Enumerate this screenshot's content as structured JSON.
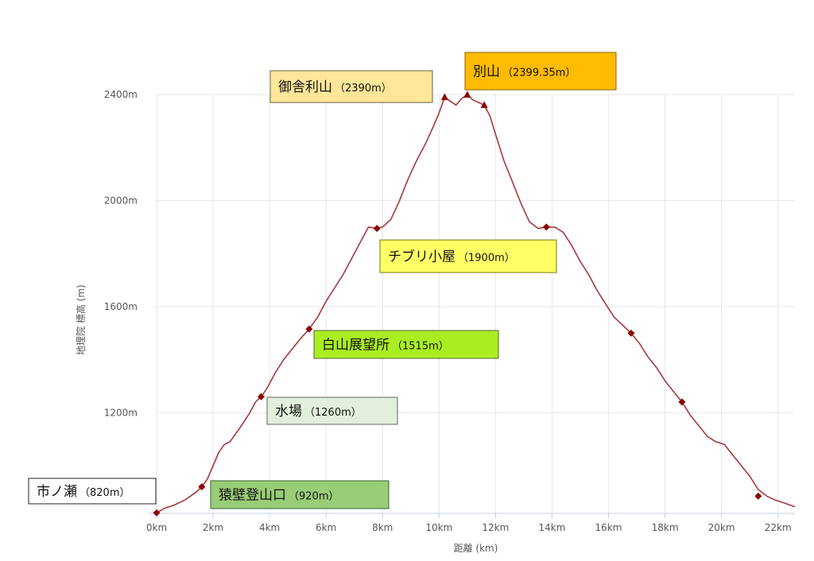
{
  "chart_data": {
    "type": "line",
    "title": "",
    "xlabel": "距離 (km)",
    "ylabel": "地理院 標高 (m)",
    "xlim": [
      0,
      22.6
    ],
    "ylim": [
      820,
      2400
    ],
    "x_ticks": [
      "0km",
      "2km",
      "4km",
      "6km",
      "8km",
      "10km",
      "12km",
      "14km",
      "16km",
      "18km",
      "20km",
      "22km"
    ],
    "y_ticks": [
      "1200m",
      "1600m",
      "2000m",
      "2400m"
    ],
    "grid": true,
    "colors": {
      "line": "#a33a3a",
      "marker": "#8b0000",
      "grid": "#e6e6e6",
      "axis": "#c8d0e0"
    },
    "series": [
      {
        "x": [
          0,
          0.3,
          0.6,
          1.0,
          1.4,
          1.6,
          1.8,
          2.0,
          2.2,
          2.4,
          2.6,
          2.8,
          3.0,
          3.3,
          3.5,
          3.7,
          3.9,
          4.2,
          4.5,
          4.8,
          5.1,
          5.4,
          5.7,
          6.0,
          6.3,
          6.6,
          6.9,
          7.2,
          7.5,
          7.8,
          8.0,
          8.3,
          8.6,
          8.9,
          9.2,
          9.5,
          9.8,
          10.0,
          10.2,
          10.4,
          10.6,
          10.8,
          11.0,
          11.2,
          11.4,
          11.6,
          11.8,
          12.0,
          12.3,
          12.6,
          12.9,
          13.2,
          13.5,
          13.8,
          14.1,
          14.4,
          14.7,
          15.0,
          15.3,
          15.6,
          15.9,
          16.2,
          16.5,
          16.8,
          17.1,
          17.4,
          17.7,
          18.0,
          18.3,
          18.6,
          18.9,
          19.2,
          19.5,
          19.8,
          20.1,
          20.4,
          20.7,
          21.0,
          21.3,
          21.6,
          21.9,
          22.2,
          22.4,
          22.6
        ],
        "values": [
          822,
          840,
          850,
          870,
          900,
          920,
          950,
          1000,
          1050,
          1080,
          1090,
          1120,
          1150,
          1200,
          1240,
          1260,
          1290,
          1350,
          1400,
          1440,
          1480,
          1515,
          1560,
          1620,
          1670,
          1720,
          1780,
          1840,
          1900,
          1895,
          1900,
          1930,
          2000,
          2080,
          2150,
          2210,
          2280,
          2330,
          2390,
          2375,
          2360,
          2385,
          2399,
          2380,
          2370,
          2360,
          2320,
          2250,
          2150,
          2070,
          1990,
          1920,
          1895,
          1900,
          1900,
          1880,
          1830,
          1770,
          1720,
          1660,
          1610,
          1560,
          1530,
          1500,
          1460,
          1410,
          1370,
          1320,
          1280,
          1240,
          1190,
          1150,
          1110,
          1090,
          1080,
          1040,
          1000,
          960,
          910,
          885,
          870,
          860,
          852,
          845
        ]
      }
    ],
    "markers": [
      {
        "kind": "diamond",
        "x": 0.0,
        "y": 822
      },
      {
        "kind": "diamond",
        "x": 1.6,
        "y": 920
      },
      {
        "kind": "diamond",
        "x": 3.7,
        "y": 1260
      },
      {
        "kind": "diamond",
        "x": 5.4,
        "y": 1515
      },
      {
        "kind": "diamond",
        "x": 7.8,
        "y": 1895
      },
      {
        "kind": "triangle",
        "x": 10.2,
        "y": 2390
      },
      {
        "kind": "triangle",
        "x": 11.0,
        "y": 2399
      },
      {
        "kind": "triangle",
        "x": 11.6,
        "y": 2360
      },
      {
        "kind": "diamond",
        "x": 13.8,
        "y": 1900
      },
      {
        "kind": "diamond",
        "x": 16.8,
        "y": 1500
      },
      {
        "kind": "diamond",
        "x": 18.6,
        "y": 1240
      },
      {
        "kind": "diamond",
        "x": 21.3,
        "y": 885
      }
    ],
    "annotations": [
      {
        "name": "市ノ瀬",
        "elevation": "（820m）",
        "bg": "#ffffff",
        "border": "#222222"
      },
      {
        "name": "猿壁登山口",
        "elevation": "（920m）",
        "bg": "#99cc77",
        "border": "#336633"
      },
      {
        "name": "水場",
        "elevation": "（1260m）",
        "bg": "#e2efda",
        "border": "#666666"
      },
      {
        "name": "白山展望所",
        "elevation": "（1515m）",
        "bg": "#aaee22",
        "border": "#556633"
      },
      {
        "name": "チブリ小屋",
        "elevation": "（1900m）",
        "bg": "#ffff66",
        "border": "#777700"
      },
      {
        "name": "御舎利山",
        "elevation": "（2390m）",
        "bg": "#ffe699",
        "border": "#666644"
      },
      {
        "name": "別山",
        "elevation": "（2399.35m）",
        "bg": "#ffbb00",
        "border": "#886600"
      }
    ]
  }
}
